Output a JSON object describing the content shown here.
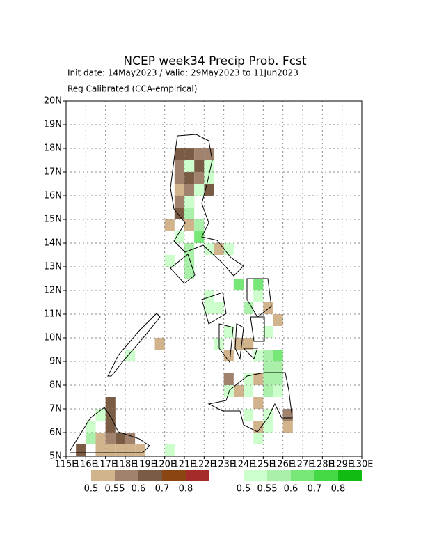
{
  "title": "NCEP week34 Precip Prob. Fcst",
  "init_line": "Init date: 14May2023 / Valid: 29May2023 to 11Jun2023",
  "method": "Reg Calibrated (CCA-empirical)",
  "map": {
    "xlim": [
      115,
      130
    ],
    "ylim": [
      5,
      20
    ],
    "grid": true,
    "xticks": [
      {
        "value": 115,
        "label": "115E"
      },
      {
        "value": 116,
        "label": "116E"
      },
      {
        "value": 117,
        "label": "117E"
      },
      {
        "value": 118,
        "label": "118E"
      },
      {
        "value": 119,
        "label": "119E"
      },
      {
        "value": 120,
        "label": "120E"
      },
      {
        "value": 121,
        "label": "121E"
      },
      {
        "value": 122,
        "label": "122E"
      },
      {
        "value": 123,
        "label": "123E"
      },
      {
        "value": 124,
        "label": "124E"
      },
      {
        "value": 125,
        "label": "125E"
      },
      {
        "value": 126,
        "label": "126E"
      },
      {
        "value": 127,
        "label": "127E"
      },
      {
        "value": 128,
        "label": "128E"
      },
      {
        "value": 129,
        "label": "129E"
      },
      {
        "value": 130,
        "label": "130E"
      }
    ],
    "yticks": [
      {
        "value": 5,
        "label": "5N"
      },
      {
        "value": 6,
        "label": "6N"
      },
      {
        "value": 7,
        "label": "7N"
      },
      {
        "value": 8,
        "label": "8N"
      },
      {
        "value": 9,
        "label": "9N"
      },
      {
        "value": 10,
        "label": "10N"
      },
      {
        "value": 11,
        "label": "11N"
      },
      {
        "value": 12,
        "label": "12N"
      },
      {
        "value": 13,
        "label": "13N"
      },
      {
        "value": 14,
        "label": "14N"
      },
      {
        "value": 15,
        "label": "15N"
      },
      {
        "value": 16,
        "label": "16N"
      },
      {
        "value": 17,
        "label": "17N"
      },
      {
        "value": 18,
        "label": "18N"
      },
      {
        "value": 19,
        "label": "19N"
      },
      {
        "value": 20,
        "label": "20N"
      }
    ],
    "below": [
      [
        120.5,
        17.5,
        0.6
      ],
      [
        121,
        17.5,
        0.6
      ],
      [
        121.5,
        17.5,
        0.55
      ],
      [
        122,
        17.5,
        0.55
      ],
      [
        120.5,
        17,
        0.55
      ],
      [
        121,
        17,
        0.6
      ],
      [
        121.5,
        17,
        0.6
      ],
      [
        120.5,
        16.5,
        0.55
      ],
      [
        121,
        16.5,
        0.6
      ],
      [
        121.5,
        16.5,
        0.55
      ],
      [
        120.5,
        16,
        0.5
      ],
      [
        121,
        16,
        0.55
      ],
      [
        122,
        16,
        0.6
      ],
      [
        120.5,
        15.5,
        0.55
      ],
      [
        121,
        15.5,
        0.5
      ],
      [
        120.5,
        15,
        0.6
      ],
      [
        120,
        14.5,
        0.5
      ],
      [
        121,
        14.5,
        0.5
      ],
      [
        122.5,
        13.5,
        0.5
      ],
      [
        119.5,
        9.5,
        0.5
      ],
      [
        123.5,
        9.5,
        0.5
      ],
      [
        123,
        9,
        0.5
      ],
      [
        124,
        9.5,
        0.5
      ],
      [
        123,
        8,
        0.55
      ],
      [
        124.5,
        8,
        0.5
      ],
      [
        125.5,
        10.5,
        0.5
      ],
      [
        125,
        11,
        0.5
      ],
      [
        124.5,
        7,
        0.5
      ],
      [
        124.5,
        6,
        0.5
      ],
      [
        126,
        6.5,
        0.55
      ],
      [
        126,
        6,
        0.5
      ],
      [
        123.5,
        7.5,
        0.5
      ],
      [
        117,
        7,
        0.6
      ],
      [
        117,
        6.5,
        0.6
      ],
      [
        117,
        6,
        0.6
      ],
      [
        116.5,
        5.5,
        0.5
      ],
      [
        117,
        5.5,
        0.55
      ],
      [
        117.5,
        5.5,
        0.6
      ],
      [
        118,
        5.5,
        0.55
      ],
      [
        118.5,
        5,
        0.5
      ],
      [
        118,
        5,
        0.5
      ],
      [
        117.5,
        5,
        0.5
      ],
      [
        117,
        5,
        0.5
      ],
      [
        116.5,
        5,
        0.5
      ],
      [
        115.5,
        5,
        0.6
      ]
    ],
    "above": [
      [
        121,
        15,
        0.55
      ],
      [
        121.5,
        14.5,
        0.55
      ],
      [
        121.5,
        14,
        0.6
      ],
      [
        120.5,
        14,
        0.5
      ],
      [
        121,
        13.5,
        0.55
      ],
      [
        122,
        13.5,
        0.5
      ],
      [
        123,
        13.5,
        0.5
      ],
      [
        120,
        13,
        0.5
      ],
      [
        121,
        13,
        0.55
      ],
      [
        121,
        12.5,
        0.55
      ],
      [
        122,
        11,
        0.5
      ],
      [
        122.5,
        11,
        0.5
      ],
      [
        122,
        11.5,
        0.5
      ],
      [
        123.5,
        12,
        0.6
      ],
      [
        124.5,
        12,
        0.6
      ],
      [
        124.5,
        11.5,
        0.5
      ],
      [
        124,
        11,
        0.55
      ],
      [
        125,
        10,
        0.5
      ],
      [
        123,
        10,
        0.5
      ],
      [
        122.5,
        9.5,
        0.5
      ],
      [
        124.5,
        9,
        0.5
      ],
      [
        125,
        9,
        0.55
      ],
      [
        125.5,
        9,
        0.6
      ],
      [
        125,
        8.5,
        0.55
      ],
      [
        125.5,
        8.5,
        0.55
      ],
      [
        124,
        8,
        0.5
      ],
      [
        125,
        8,
        0.55
      ],
      [
        125.5,
        8,
        0.55
      ],
      [
        123,
        7.5,
        0.5
      ],
      [
        124,
        7.5,
        0.5
      ],
      [
        125,
        7.5,
        0.55
      ],
      [
        125.5,
        7.5,
        0.5
      ],
      [
        124,
        6.5,
        0.5
      ],
      [
        125,
        6.5,
        0.5
      ],
      [
        125,
        6,
        0.5
      ],
      [
        124.5,
        5.5,
        0.5
      ],
      [
        116,
        6,
        0.5
      ],
      [
        116.5,
        6.5,
        0.5
      ],
      [
        116,
        5.5,
        0.55
      ],
      [
        118,
        9,
        0.5
      ],
      [
        121,
        17,
        0.5
      ],
      [
        121.5,
        16,
        0.5
      ],
      [
        122,
        16.5,
        0.5
      ],
      [
        122,
        17,
        0.5
      ],
      [
        121,
        15.5,
        0.5
      ],
      [
        120,
        5,
        0.5
      ]
    ]
  },
  "legend": {
    "levels": [
      0.5,
      0.55,
      0.6,
      0.7,
      0.8
    ],
    "below_colors": [
      "#d2b48c",
      "#a0826d",
      "#7a5c45",
      "#8b4513",
      "#a52a2a"
    ],
    "above_colors": [
      "#ccffcc",
      "#aaf0aa",
      "#77e877",
      "#44d844",
      "#11bb11"
    ]
  }
}
